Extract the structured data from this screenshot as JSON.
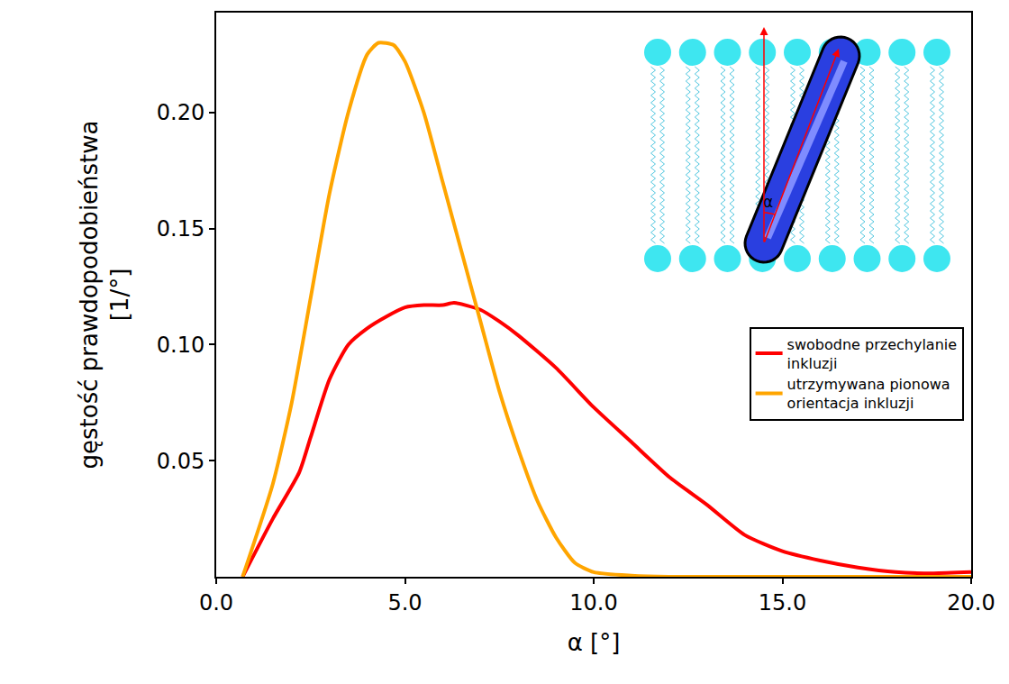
{
  "chart_data": {
    "type": "line",
    "xlabel": "α [°]",
    "ylabel": [
      "gęstość prawdopodobieństwa",
      "[1/°]"
    ],
    "xlim": [
      0,
      20
    ],
    "ylim": [
      0,
      0.243
    ],
    "xticks": [
      {
        "value": 0,
        "label": "0.0"
      },
      {
        "value": 5,
        "label": "5.0"
      },
      {
        "value": 10,
        "label": "10.0"
      },
      {
        "value": 15,
        "label": "15.0"
      },
      {
        "value": 20,
        "label": "20.0"
      }
    ],
    "yticks": [
      0.05,
      {
        "value": 0.1,
        "label": "0.10"
      },
      0.15,
      {
        "value": 0.2,
        "label": "0.20"
      }
    ],
    "grid": false,
    "legend": "center right",
    "annotations": [
      "α"
    ],
    "series": [
      {
        "name": "swobodne przechylanie inkluzji",
        "color": "#ff0000",
        "x": [
          0.7,
          1.5,
          2.2,
          2.5,
          3.0,
          3.5,
          4.0,
          4.5,
          5.0,
          5.5,
          6.0,
          6.3,
          7.0,
          7.5,
          8.0,
          9.0,
          10.0,
          11.0,
          12.0,
          13.0,
          14.0,
          15.0,
          16.0,
          17.0,
          18.0,
          19.0,
          20.0
        ],
        "values": [
          0,
          0.025,
          0.045,
          0.06,
          0.085,
          0.1,
          0.107,
          0.112,
          0.116,
          0.117,
          0.117,
          0.118,
          0.115,
          0.11,
          0.104,
          0.09,
          0.073,
          0.058,
          0.043,
          0.031,
          0.018,
          0.011,
          0.007,
          0.004,
          0.002,
          0.0015,
          0.002
        ]
      },
      {
        "name": "utrzymywana pionowa orientacja inkluzji",
        "color": "#ffa500",
        "x": [
          0.7,
          1.5,
          2.0,
          2.5,
          3.0,
          3.5,
          4.0,
          4.3,
          4.7,
          5.0,
          5.5,
          6.0,
          6.5,
          7.0,
          7.5,
          8.0,
          8.5,
          9.0,
          9.5,
          10.0,
          11.0,
          12.0,
          14.0,
          16.0,
          18.0,
          20.0
        ],
        "values": [
          0,
          0.04,
          0.075,
          0.12,
          0.165,
          0.2,
          0.225,
          0.23,
          0.229,
          0.222,
          0.2,
          0.17,
          0.14,
          0.11,
          0.08,
          0.055,
          0.033,
          0.017,
          0.006,
          0.002,
          0.0005,
          0,
          0,
          0,
          0,
          0
        ]
      }
    ]
  }
}
